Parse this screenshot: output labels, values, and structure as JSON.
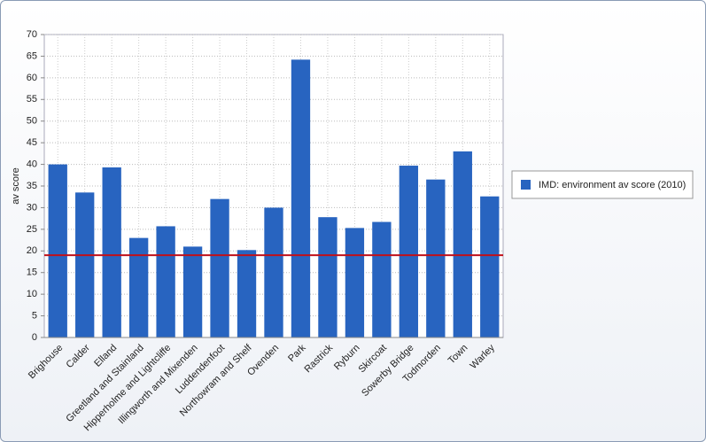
{
  "chart_data": {
    "type": "bar",
    "y_label": "av score",
    "categories": [
      "Brighouse",
      "Calder",
      "Elland",
      "Greetland and Stainland",
      "Hipperholme and Lightcliffe",
      "Illingworth and Mixenden",
      "Luddendenfoot",
      "Northowram and Shelf",
      "Ovenden",
      "Park",
      "Rastrick",
      "Ryburn",
      "Skircoat",
      "Sowerby Bridge",
      "Todmorden",
      "Town",
      "Warley"
    ],
    "series": [
      {
        "name": "IMD: environment av score (2010)",
        "color": "#2864c0",
        "values": [
          40,
          33.5,
          39.3,
          23,
          25.7,
          21,
          32,
          20.2,
          30,
          64.2,
          27.8,
          25.3,
          26.7,
          39.7,
          36.5,
          43,
          32.6
        ]
      }
    ],
    "reference_line": {
      "value": 19,
      "color": "#c0101a"
    },
    "ylim": [
      0,
      70
    ],
    "yticks": [
      0,
      5,
      10,
      15,
      20,
      25,
      30,
      35,
      40,
      45,
      50,
      55,
      60,
      65,
      70
    ],
    "grid": true,
    "legend": "right"
  }
}
